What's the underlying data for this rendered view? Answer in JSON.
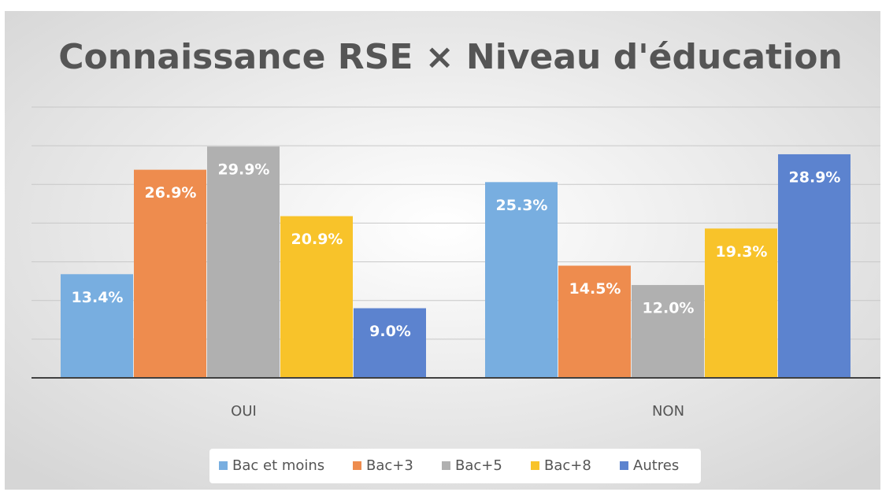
{
  "chart_data": {
    "type": "bar",
    "title": "Connaissance RSE × Niveau d'éducation",
    "categories": [
      "OUI",
      "NON"
    ],
    "series": [
      {
        "name": "Bac et moins",
        "color": "#78aee0",
        "values": [
          13.4,
          25.3
        ],
        "value_labels": [
          "13.4%",
          "25.3%"
        ]
      },
      {
        "name": "Bac+3",
        "color": "#ee8c4e",
        "values": [
          26.9,
          14.5
        ],
        "value_labels": [
          "26.9%",
          "14.5%"
        ]
      },
      {
        "name": "Bac+5",
        "color": "#b0b0b0",
        "values": [
          29.9,
          12.0
        ],
        "value_labels": [
          "29.9%",
          "12.0%"
        ]
      },
      {
        "name": "Bac+8",
        "color": "#f8c32a",
        "values": [
          20.9,
          19.3
        ],
        "value_labels": [
          "20.9%",
          "19.3%"
        ]
      },
      {
        "name": "Autres",
        "color": "#5c83cf",
        "values": [
          9.0,
          28.9
        ],
        "value_labels": [
          "9.0%",
          "28.9%"
        ]
      }
    ],
    "ylim": [
      0,
      35
    ],
    "yticks": [
      0,
      5,
      10,
      15,
      20,
      25,
      30,
      35
    ],
    "grid": true,
    "legend": "bottom"
  }
}
